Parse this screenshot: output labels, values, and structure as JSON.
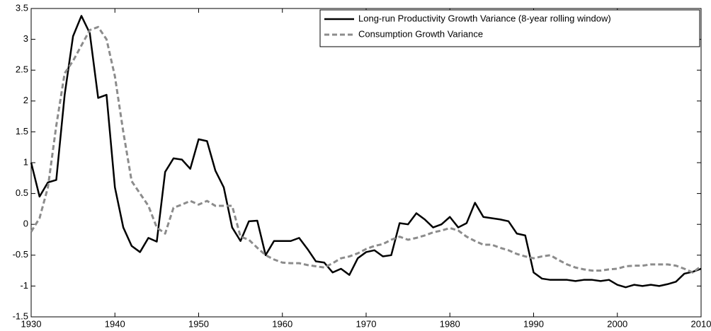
{
  "chart_data": {
    "type": "line",
    "x": [
      1930,
      1931,
      1932,
      1933,
      1934,
      1935,
      1936,
      1937,
      1938,
      1939,
      1940,
      1941,
      1942,
      1943,
      1944,
      1945,
      1946,
      1947,
      1948,
      1949,
      1950,
      1951,
      1952,
      1953,
      1954,
      1955,
      1956,
      1957,
      1958,
      1959,
      1960,
      1961,
      1962,
      1963,
      1964,
      1965,
      1966,
      1967,
      1968,
      1969,
      1970,
      1971,
      1972,
      1973,
      1974,
      1975,
      1976,
      1977,
      1978,
      1979,
      1980,
      1981,
      1982,
      1983,
      1984,
      1985,
      1986,
      1987,
      1988,
      1989,
      1990,
      1991,
      1992,
      1993,
      1994,
      1995,
      1996,
      1997,
      1998,
      1999,
      2000,
      2001,
      2002,
      2003,
      2004,
      2005,
      2006,
      2007,
      2008,
      2009,
      2010
    ],
    "series": [
      {
        "name": "Long-run Productivity Growth Variance (8-year rolling window)",
        "color": "#000000",
        "dashed": false,
        "values": [
          1.0,
          0.45,
          0.68,
          0.72,
          2.1,
          3.05,
          3.38,
          3.1,
          2.05,
          2.1,
          0.6,
          -0.05,
          -0.35,
          -0.45,
          -0.22,
          -0.28,
          0.85,
          1.07,
          1.05,
          0.9,
          1.38,
          1.35,
          0.87,
          0.6,
          -0.05,
          -0.27,
          0.05,
          0.06,
          -0.5,
          -0.27,
          -0.27,
          -0.27,
          -0.22,
          -0.4,
          -0.6,
          -0.62,
          -0.78,
          -0.72,
          -0.82,
          -0.55,
          -0.45,
          -0.42,
          -0.52,
          -0.5,
          0.02,
          0.0,
          0.18,
          0.08,
          -0.05,
          0.0,
          0.12,
          -0.05,
          0.02,
          0.35,
          0.12,
          0.1,
          0.08,
          0.05,
          -0.15,
          -0.18,
          -0.78,
          -0.88,
          -0.9,
          -0.9,
          -0.9,
          -0.92,
          -0.9,
          -0.9,
          -0.92,
          -0.9,
          -0.98,
          -1.02,
          -0.98,
          -1.0,
          -0.98,
          -1.0,
          -0.97,
          -0.93,
          -0.8,
          -0.77,
          -0.72
        ]
      },
      {
        "name": "Consumption Growth Variance",
        "color": "#8c8c8c",
        "dashed": true,
        "values": [
          -0.12,
          0.1,
          0.6,
          1.6,
          2.45,
          2.65,
          2.9,
          3.15,
          3.2,
          3.0,
          2.4,
          1.5,
          0.7,
          0.5,
          0.3,
          -0.05,
          -0.15,
          0.27,
          0.32,
          0.38,
          0.32,
          0.38,
          0.3,
          0.3,
          0.3,
          -0.2,
          -0.25,
          -0.38,
          -0.5,
          -0.57,
          -0.62,
          -0.63,
          -0.63,
          -0.66,
          -0.68,
          -0.7,
          -0.63,
          -0.55,
          -0.52,
          -0.47,
          -0.4,
          -0.35,
          -0.32,
          -0.25,
          -0.2,
          -0.25,
          -0.22,
          -0.18,
          -0.13,
          -0.1,
          -0.06,
          -0.1,
          -0.2,
          -0.27,
          -0.33,
          -0.33,
          -0.38,
          -0.42,
          -0.48,
          -0.52,
          -0.55,
          -0.52,
          -0.5,
          -0.58,
          -0.65,
          -0.7,
          -0.73,
          -0.75,
          -0.75,
          -0.73,
          -0.72,
          -0.68,
          -0.67,
          -0.67,
          -0.65,
          -0.65,
          -0.65,
          -0.67,
          -0.72,
          -0.78,
          -0.68
        ]
      }
    ],
    "xlim": [
      1930,
      2010
    ],
    "xticks": [
      1930,
      1940,
      1950,
      1960,
      1970,
      1980,
      1990,
      2000,
      2010
    ],
    "ylim": [
      -1.5,
      3.5
    ],
    "yticks": [
      -1.5,
      -1,
      -0.5,
      0,
      0.5,
      1,
      1.5,
      2,
      2.5,
      3,
      3.5
    ],
    "legend": "upper right",
    "grid": false
  }
}
